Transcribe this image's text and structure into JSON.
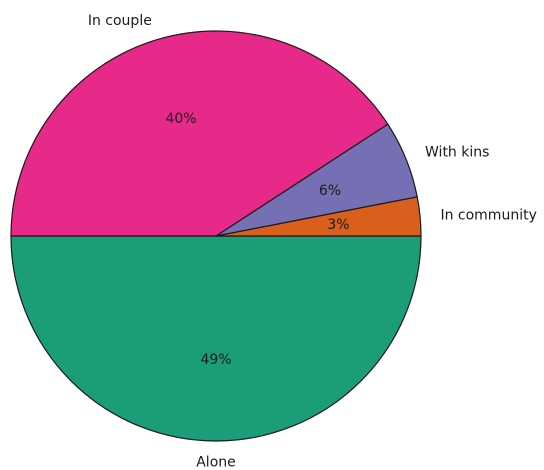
{
  "chart_data": {
    "type": "pie",
    "title": "",
    "start_angle_deg": 180,
    "direction": "counterclockwise",
    "slices": [
      {
        "label": "Alone",
        "value": 49,
        "pct_label": "49%",
        "color": "#1b9e77"
      },
      {
        "label": "In community",
        "value": 3,
        "pct_label": "3%",
        "color": "#d95f1c"
      },
      {
        "label": "With kins",
        "value": 6,
        "pct_label": "6%",
        "color": "#7570b3"
      },
      {
        "label": "In couple",
        "value": 40,
        "pct_label": "40%",
        "color": "#e7298a"
      }
    ],
    "legend": "none"
  }
}
